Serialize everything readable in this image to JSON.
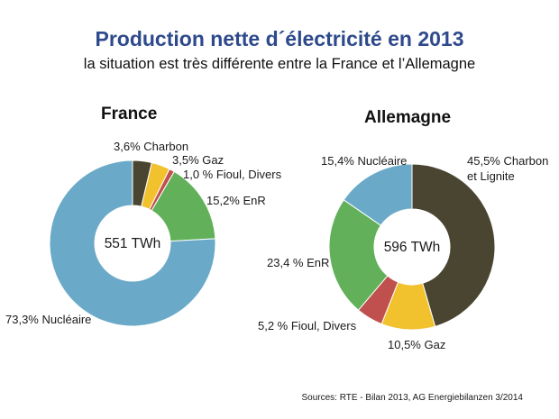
{
  "title": "Production nette d´électricité en 2013",
  "subtitle": "la situation est très différente entre la France et l’Allemagne",
  "source": "Sources:  RTE - Bilan 2013, AG Energiebilanzen 3/2014",
  "chart_data": [
    {
      "type": "pie",
      "title": "France",
      "center_label": "551 TWh",
      "slices": [
        {
          "label": "3,6% Charbon",
          "value": 3.6,
          "color": "#4a4530"
        },
        {
          "label": "3,5% Gaz",
          "value": 3.5,
          "color": "#f2c12e"
        },
        {
          "label": "1,0 % Fioul, Divers",
          "value": 1.0,
          "color": "#c0504d"
        },
        {
          "label": "15,2% EnR",
          "value": 15.2,
          "color": "#62b15a"
        },
        {
          "label": "73,3% Nucléaire",
          "value": 73.3,
          "color": "#6aaac8"
        }
      ]
    },
    {
      "type": "pie",
      "title": "Allemagne",
      "center_label": "596 TWh",
      "slices": [
        {
          "label": "45,5% Charbon et Lignite",
          "value": 45.5,
          "color": "#4a4530"
        },
        {
          "label": "10,5% Gaz",
          "value": 10.5,
          "color": "#f2c12e"
        },
        {
          "label": "5,2 % Fioul, Divers",
          "value": 5.2,
          "color": "#c0504d"
        },
        {
          "label": "23,4 % EnR",
          "value": 23.4,
          "color": "#62b15a"
        },
        {
          "label": "15,4% Nucléaire",
          "value": 15.4,
          "color": "#6aaac8"
        }
      ]
    }
  ]
}
